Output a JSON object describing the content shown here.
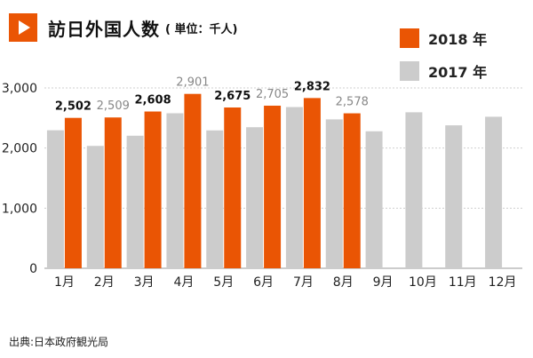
{
  "header": {
    "title": "訪日外国人数",
    "unit": "( 単位：千人)"
  },
  "source": "出典:日本政府観光局",
  "colors": {
    "accent": "#ea5504",
    "series_2018": "#ea5504",
    "series_2017": "#cccccc",
    "label_2017": "#888888",
    "grid": "#cfcfcf"
  },
  "chart_data": {
    "type": "bar",
    "title": "訪日外国人数",
    "subtitle": "( 単位：千人)",
    "categories": [
      "1月",
      "2月",
      "3月",
      "4月",
      "5月",
      "6月",
      "7月",
      "8月",
      "9月",
      "10月",
      "11月",
      "12月"
    ],
    "yticks": [
      "0",
      "1,000",
      "2,000",
      "3,000"
    ],
    "ylim": [
      0,
      3000
    ],
    "grid": true,
    "legend_position": "top-right",
    "series": [
      {
        "name": "2017 年",
        "values": [
          2296,
          2036,
          2205,
          2579,
          2294,
          2347,
          2682,
          2477,
          2279,
          2595,
          2378,
          2521
        ]
      },
      {
        "name": "2018 年",
        "values": [
          2502,
          2509,
          2608,
          2901,
          2675,
          2705,
          2832,
          2578,
          null,
          null,
          null,
          null
        ]
      }
    ],
    "data_labels": [
      "2,502",
      "2,509",
      "2,608",
      "2,901",
      "2,675",
      "2,705",
      "2,832",
      "2,578"
    ],
    "data_label_highlight": [
      true,
      false,
      true,
      false,
      true,
      false,
      true,
      false
    ]
  }
}
